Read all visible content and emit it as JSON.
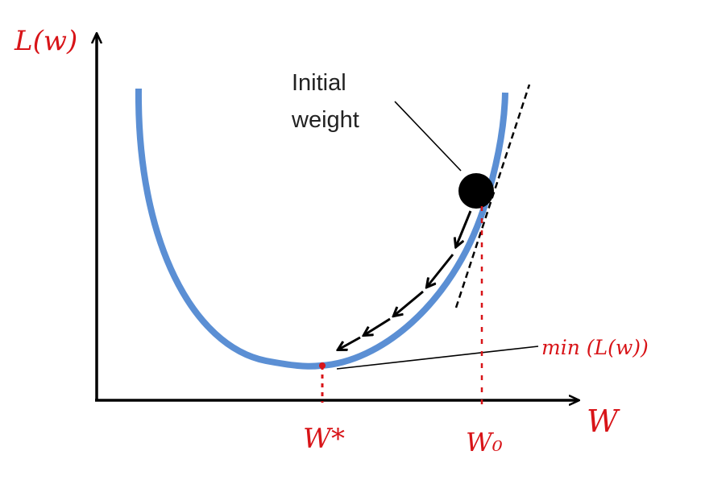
{
  "labels": {
    "y_axis": "L(w)",
    "x_axis": "W",
    "initial_weight_line1": "Initial",
    "initial_weight_line2": "weight",
    "minimum": "min (L(w))",
    "w_star": "W*",
    "w_zero": "W₀"
  },
  "colors": {
    "curve": "#5b8fd4",
    "annotation": "#d81418",
    "axis": "#000000",
    "ball": "#000000"
  },
  "icons": {
    "ball": "filled-circle",
    "step_arrow": "arrow"
  },
  "gradient_descent_steps": 5
}
